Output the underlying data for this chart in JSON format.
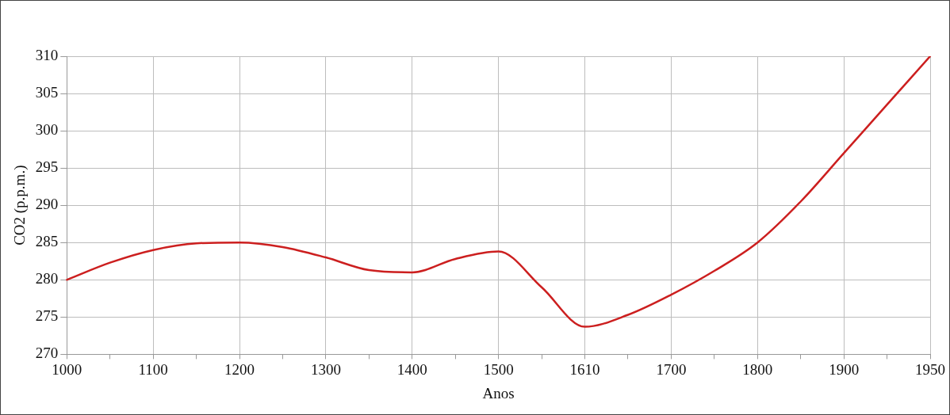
{
  "chart_data": {
    "type": "line",
    "xlabel": "Anos",
    "ylabel": "CO2 (p.p.m.)",
    "categories": [
      "1000",
      null,
      "1100",
      null,
      "1200",
      null,
      "1300",
      null,
      "1400",
      null,
      "1500",
      null,
      "1610",
      null,
      "1700",
      null,
      "1800",
      null,
      "1900",
      null,
      "1950"
    ],
    "series": [
      {
        "color": "#cc1f1f",
        "values": [
          280,
          282.3,
          284,
          284.9,
          285,
          284.4,
          283,
          281.3,
          281,
          282.8,
          283.8,
          279,
          273.7,
          275.3,
          278,
          281.2,
          285,
          290.5,
          297,
          303.5,
          310
        ]
      }
    ],
    "ylim": [
      270,
      310
    ],
    "yticks": [
      270,
      275,
      280,
      285,
      290,
      295,
      300,
      305,
      310
    ],
    "grid": true,
    "legend": false,
    "marker": "none",
    "line_style": "solid"
  }
}
